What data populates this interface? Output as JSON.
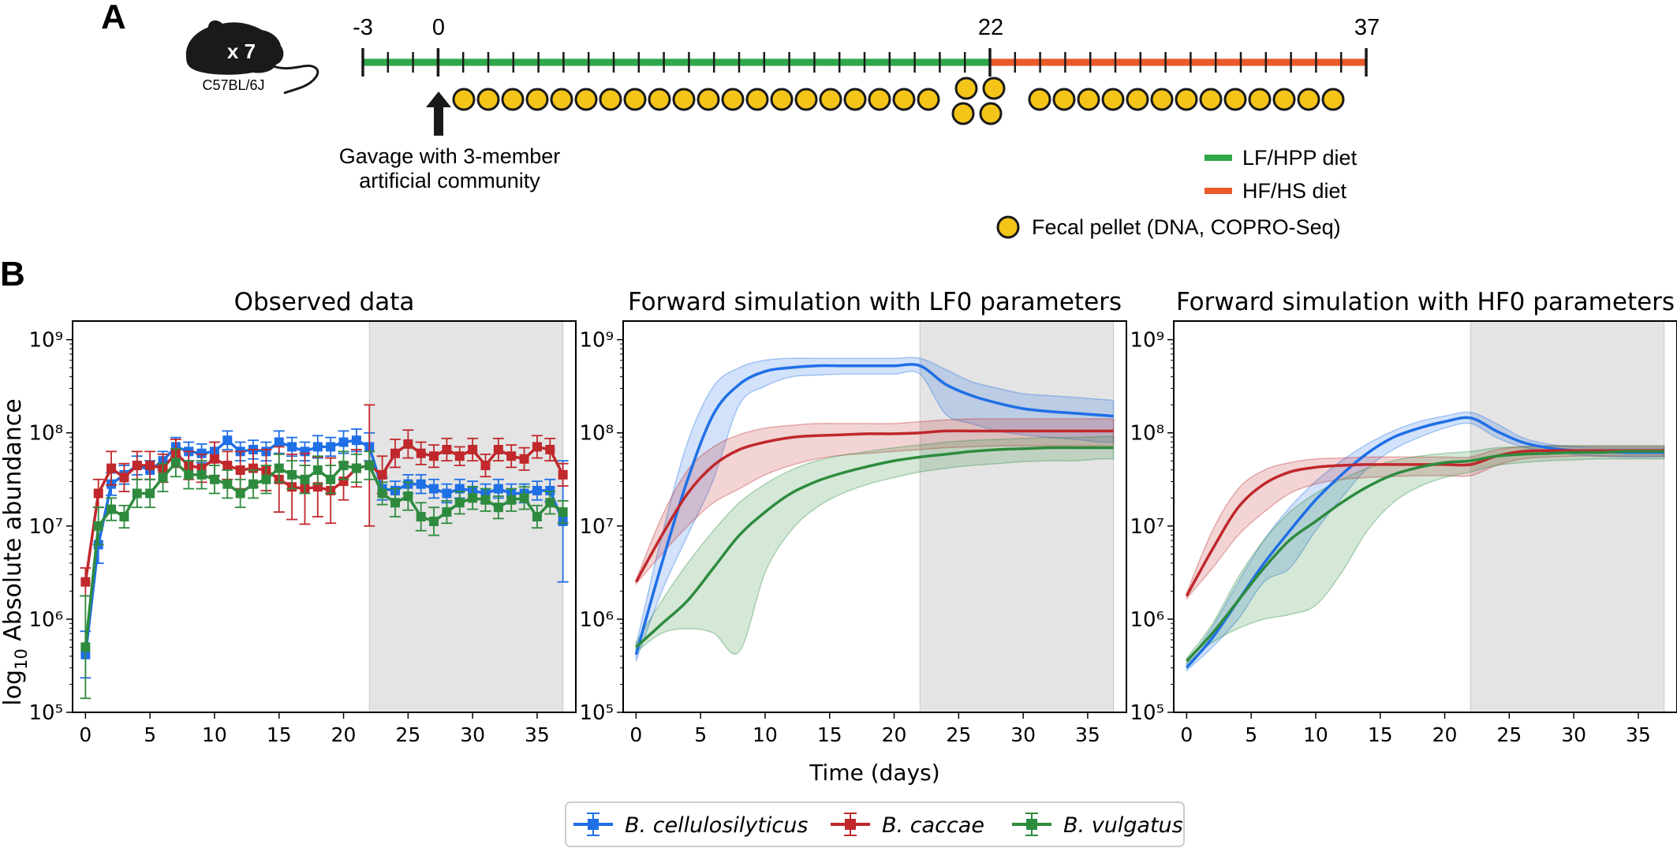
{
  "panel_a": {
    "label": "A",
    "mouse_count": "x 7",
    "mouse_strain": "C57BL/6J",
    "timeline_ticks": [
      "-3",
      "0",
      "22",
      "37"
    ],
    "gavage_lines": [
      "Gavage with 3-member",
      "artificial community"
    ],
    "legend": [
      {
        "label": "LF/HPP diet",
        "color": "#2ea84a"
      },
      {
        "label": "HF/HS diet",
        "color": "#ea5a2a"
      },
      {
        "label": "Fecal pellet (DNA, COPRO-Seq)",
        "color": "#f4c518"
      }
    ]
  },
  "panel_b": {
    "label": "B",
    "ylabel_prefix": "log",
    "ylabel_sub": "10",
    "ylabel_suffix": " Absolute abundance",
    "xlabel": "Time (days)"
  },
  "legend": [
    {
      "label": "B. cellulosilyticus",
      "color": "#1f6fe6"
    },
    {
      "label": "B. caccae",
      "color": "#c0282c"
    },
    {
      "label": "B. vulgatus",
      "color": "#2e8b3e"
    }
  ],
  "chart_data": [
    {
      "type": "line",
      "title": "Observed data",
      "xlabel": "",
      "ylabel": "log10 Absolute abundance",
      "xlim": [
        -1,
        38
      ],
      "ylim": [
        5,
        9.2
      ],
      "y_scale": "log10",
      "xticks": [
        0,
        5,
        10,
        15,
        20,
        25,
        30,
        35
      ],
      "yticks_exponent": [
        5,
        6,
        7,
        8,
        9
      ],
      "shaded_region": [
        22,
        37
      ],
      "markers": true,
      "error_bars": true,
      "x": [
        0,
        1,
        2,
        3,
        4,
        5,
        6,
        7,
        8,
        9,
        10,
        11,
        12,
        13,
        14,
        15,
        16,
        17,
        18,
        19,
        20,
        21,
        22,
        23,
        24,
        25,
        26,
        27,
        28,
        29,
        30,
        31,
        32,
        33,
        34,
        35,
        36,
        37
      ],
      "series": [
        {
          "name": "B. cellulosilyticus",
          "values": [
            5.62,
            6.8,
            7.45,
            7.55,
            7.65,
            7.6,
            7.7,
            7.85,
            7.8,
            7.78,
            7.8,
            7.92,
            7.8,
            7.82,
            7.8,
            7.9,
            7.85,
            7.8,
            7.85,
            7.85,
            7.9,
            7.92,
            7.85,
            7.4,
            7.38,
            7.45,
            7.45,
            7.4,
            7.35,
            7.4,
            7.38,
            7.35,
            7.4,
            7.35,
            7.35,
            7.38,
            7.38,
            7.05
          ],
          "err": [
            0.25,
            0.2,
            0.12,
            0.1,
            0.1,
            0.1,
            0.1,
            0.1,
            0.1,
            0.1,
            0.1,
            0.1,
            0.1,
            0.1,
            0.1,
            0.12,
            0.1,
            0.1,
            0.12,
            0.1,
            0.12,
            0.12,
            0.15,
            0.12,
            0.1,
            0.1,
            0.1,
            0.1,
            0.1,
            0.1,
            0.1,
            0.1,
            0.1,
            0.1,
            0.1,
            0.1,
            0.12,
            0.65
          ]
        },
        {
          "name": "B. caccae",
          "values": [
            6.4,
            7.35,
            7.62,
            7.52,
            7.65,
            7.65,
            7.62,
            7.78,
            7.65,
            7.62,
            7.72,
            7.65,
            7.6,
            7.62,
            7.6,
            7.5,
            7.42,
            7.4,
            7.42,
            7.38,
            7.48,
            7.62,
            7.65,
            7.55,
            7.78,
            7.88,
            7.78,
            7.75,
            7.82,
            7.75,
            7.82,
            7.65,
            7.82,
            7.75,
            7.72,
            7.85,
            7.82,
            7.55
          ],
          "err": [
            0.15,
            0.15,
            0.18,
            0.15,
            0.15,
            0.15,
            0.15,
            0.15,
            0.15,
            0.15,
            0.18,
            0.15,
            0.2,
            0.2,
            0.22,
            0.35,
            0.35,
            0.38,
            0.32,
            0.35,
            0.2,
            0.2,
            0.65,
            0.2,
            0.15,
            0.15,
            0.12,
            0.12,
            0.12,
            0.1,
            0.12,
            0.12,
            0.12,
            0.12,
            0.12,
            0.12,
            0.12,
            0.12
          ]
        },
        {
          "name": "B. vulgatus",
          "values": [
            5.7,
            7.0,
            7.18,
            7.1,
            7.35,
            7.35,
            7.52,
            7.68,
            7.55,
            7.55,
            7.5,
            7.45,
            7.35,
            7.45,
            7.5,
            7.62,
            7.55,
            7.5,
            7.6,
            7.5,
            7.65,
            7.62,
            7.65,
            7.35,
            7.25,
            7.32,
            7.1,
            7.05,
            7.15,
            7.25,
            7.3,
            7.28,
            7.2,
            7.28,
            7.3,
            7.1,
            7.25,
            7.15
          ],
          "err": [
            0.55,
            0.2,
            0.12,
            0.12,
            0.15,
            0.15,
            0.15,
            0.15,
            0.15,
            0.15,
            0.15,
            0.15,
            0.15,
            0.15,
            0.15,
            0.15,
            0.15,
            0.15,
            0.15,
            0.15,
            0.15,
            0.15,
            0.15,
            0.12,
            0.15,
            0.15,
            0.15,
            0.15,
            0.12,
            0.12,
            0.12,
            0.12,
            0.12,
            0.12,
            0.12,
            0.12,
            0.12,
            0.12
          ]
        }
      ]
    },
    {
      "type": "line",
      "title": "Forward simulation with LF0 parameters",
      "xlabel": "Time (days)",
      "xlim": [
        -1,
        38
      ],
      "ylim": [
        5,
        9.2
      ],
      "y_scale": "log10",
      "xticks": [
        0,
        5,
        10,
        15,
        20,
        25,
        30,
        35
      ],
      "yticks_exponent": [
        5,
        6,
        7,
        8,
        9
      ],
      "shaded_region": [
        22,
        37
      ],
      "x": [
        0,
        2,
        4,
        6,
        8,
        10,
        12,
        14,
        16,
        18,
        20,
        22,
        24,
        26,
        28,
        30,
        32,
        34,
        36,
        37
      ],
      "series": [
        {
          "name": "B. cellulosilyticus",
          "values": [
            5.62,
            6.6,
            7.5,
            8.2,
            8.52,
            8.66,
            8.7,
            8.72,
            8.72,
            8.72,
            8.72,
            8.72,
            8.52,
            8.4,
            8.32,
            8.26,
            8.23,
            8.21,
            8.19,
            8.18
          ],
          "lower": [
            5.55,
            6.3,
            6.9,
            7.5,
            8.3,
            8.5,
            8.6,
            8.62,
            8.63,
            8.63,
            8.63,
            8.63,
            8.2,
            8.1,
            8.02,
            7.98,
            7.95,
            7.93,
            7.9,
            7.9
          ],
          "upper": [
            5.72,
            6.9,
            7.9,
            8.5,
            8.7,
            8.78,
            8.8,
            8.8,
            8.8,
            8.8,
            8.8,
            8.8,
            8.68,
            8.55,
            8.48,
            8.42,
            8.4,
            8.38,
            8.36,
            8.35
          ]
        },
        {
          "name": "B. caccae",
          "values": [
            6.4,
            6.9,
            7.35,
            7.65,
            7.82,
            7.9,
            7.95,
            7.97,
            7.98,
            7.99,
            7.99,
            8.0,
            8.02,
            8.02,
            8.02,
            8.02,
            8.02,
            8.02,
            8.02,
            8.02
          ],
          "lower": [
            6.38,
            6.7,
            7.0,
            7.25,
            7.4,
            7.55,
            7.65,
            7.72,
            7.76,
            7.78,
            7.8,
            7.82,
            7.84,
            7.85,
            7.86,
            7.86,
            7.86,
            7.86,
            7.86,
            7.86
          ],
          "upper": [
            6.42,
            7.1,
            7.6,
            7.85,
            7.98,
            8.05,
            8.08,
            8.1,
            8.1,
            8.1,
            8.1,
            8.12,
            8.14,
            8.15,
            8.15,
            8.15,
            8.15,
            8.15,
            8.15,
            8.15
          ]
        },
        {
          "name": "B. vulgatus",
          "values": [
            5.7,
            5.95,
            6.2,
            6.55,
            6.9,
            7.15,
            7.35,
            7.48,
            7.57,
            7.64,
            7.7,
            7.74,
            7.77,
            7.8,
            7.82,
            7.83,
            7.84,
            7.84,
            7.84,
            7.84
          ],
          "lower": [
            5.65,
            5.85,
            5.9,
            5.85,
            5.65,
            6.5,
            6.95,
            7.2,
            7.35,
            7.45,
            7.52,
            7.58,
            7.62,
            7.65,
            7.67,
            7.69,
            7.7,
            7.7,
            7.72,
            7.72
          ],
          "upper": [
            5.75,
            6.2,
            6.6,
            6.95,
            7.25,
            7.45,
            7.6,
            7.7,
            7.76,
            7.8,
            7.84,
            7.87,
            7.9,
            7.92,
            7.93,
            7.94,
            7.95,
            7.95,
            7.96,
            7.96
          ]
        }
      ]
    },
    {
      "type": "line",
      "title": "Forward simulation with HF0 parameters",
      "xlabel": "",
      "xlim": [
        -1,
        38
      ],
      "ylim": [
        5,
        9.2
      ],
      "y_scale": "log10",
      "xticks": [
        0,
        5,
        10,
        15,
        20,
        25,
        30,
        35
      ],
      "yticks_exponent": [
        5,
        6,
        7,
        8,
        9
      ],
      "shaded_region": [
        22,
        37
      ],
      "x": [
        0,
        2,
        4,
        6,
        8,
        10,
        12,
        14,
        16,
        18,
        20,
        22,
        24,
        26,
        28,
        30,
        32,
        34,
        36,
        37
      ],
      "series": [
        {
          "name": "B. cellulosilyticus",
          "values": [
            5.48,
            5.8,
            6.2,
            6.6,
            6.95,
            7.28,
            7.55,
            7.78,
            7.95,
            8.05,
            8.12,
            8.16,
            8.02,
            7.9,
            7.84,
            7.81,
            7.8,
            7.79,
            7.79,
            7.79
          ],
          "lower": [
            5.45,
            5.7,
            6.0,
            6.4,
            6.55,
            6.95,
            7.3,
            7.62,
            7.82,
            7.95,
            8.05,
            8.1,
            7.95,
            7.85,
            7.8,
            7.77,
            7.75,
            7.74,
            7.74,
            7.74
          ],
          "upper": [
            5.52,
            5.92,
            6.4,
            6.85,
            7.2,
            7.48,
            7.7,
            7.88,
            8.02,
            8.12,
            8.18,
            8.22,
            8.1,
            7.95,
            7.88,
            7.85,
            7.84,
            7.84,
            7.84,
            7.84
          ]
        },
        {
          "name": "B. caccae",
          "values": [
            6.25,
            6.75,
            7.2,
            7.45,
            7.58,
            7.63,
            7.65,
            7.66,
            7.66,
            7.66,
            7.66,
            7.66,
            7.75,
            7.8,
            7.81,
            7.81,
            7.81,
            7.81,
            7.81,
            7.81
          ],
          "lower": [
            6.22,
            6.55,
            6.9,
            7.15,
            7.35,
            7.45,
            7.5,
            7.52,
            7.53,
            7.54,
            7.54,
            7.54,
            7.65,
            7.72,
            7.74,
            7.75,
            7.75,
            7.75,
            7.75,
            7.75
          ],
          "upper": [
            6.28,
            6.95,
            7.4,
            7.6,
            7.68,
            7.72,
            7.73,
            7.74,
            7.74,
            7.74,
            7.74,
            7.74,
            7.82,
            7.85,
            7.86,
            7.86,
            7.86,
            7.86,
            7.86,
            7.86
          ]
        },
        {
          "name": "B. vulgatus",
          "values": [
            5.55,
            5.85,
            6.2,
            6.55,
            6.85,
            7.05,
            7.25,
            7.42,
            7.55,
            7.63,
            7.68,
            7.7,
            7.75,
            7.77,
            7.78,
            7.79,
            7.79,
            7.8,
            7.8,
            7.8
          ],
          "lower": [
            5.52,
            5.75,
            5.9,
            6.0,
            6.05,
            6.15,
            6.5,
            6.95,
            7.25,
            7.42,
            7.52,
            7.58,
            7.65,
            7.68,
            7.7,
            7.71,
            7.72,
            7.72,
            7.72,
            7.72
          ],
          "upper": [
            5.58,
            5.95,
            6.45,
            6.85,
            7.15,
            7.35,
            7.5,
            7.62,
            7.7,
            7.75,
            7.78,
            7.8,
            7.84,
            7.85,
            7.86,
            7.86,
            7.86,
            7.86,
            7.86,
            7.86
          ]
        }
      ]
    }
  ]
}
